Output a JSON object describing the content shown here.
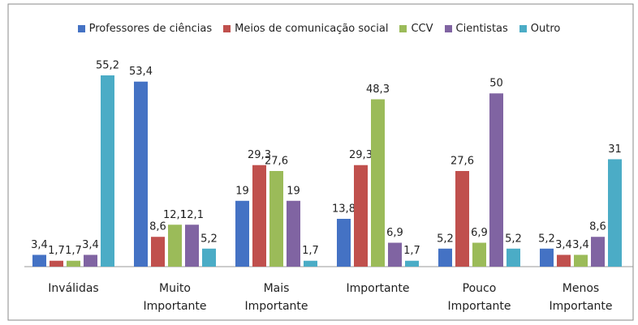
{
  "chart_data": {
    "type": "bar",
    "categories": [
      "Inválidas",
      "Muito\nImportante",
      "Mais Importante",
      "Importante",
      "Pouco\nImportante",
      "Menos\nImportante"
    ],
    "series": [
      {
        "name": "Professores de ciências",
        "color": "#4472c4",
        "values": [
          3.4,
          53.4,
          19,
          13.8,
          5.2,
          5.2
        ],
        "value_labels": [
          "3,4",
          "53,4",
          "19",
          "13,8",
          "5,2",
          "5,2"
        ]
      },
      {
        "name": "Meios de comunicação social",
        "color": "#c0504d",
        "values": [
          1.7,
          8.6,
          29.3,
          29.3,
          27.6,
          3.4
        ],
        "value_labels": [
          "1,7",
          "8,6",
          "29,3",
          "29,3",
          "27,6",
          "3,4"
        ]
      },
      {
        "name": "CCV",
        "color": "#9bbb59",
        "values": [
          1.7,
          12.1,
          27.6,
          48.3,
          6.9,
          3.4
        ],
        "value_labels": [
          "1,7",
          "12,1",
          "27,6",
          "48,3",
          "6,9",
          "3,4"
        ]
      },
      {
        "name": "Cientistas",
        "color": "#8064a2",
        "values": [
          3.4,
          12.1,
          19,
          6.9,
          50,
          8.6
        ],
        "value_labels": [
          "3,4",
          "12,1",
          "19",
          "6,9",
          "50",
          "8,6"
        ]
      },
      {
        "name": "Outro",
        "color": "#4bacc6",
        "values": [
          55.2,
          5.2,
          1.7,
          1.7,
          5.2,
          31
        ],
        "value_labels": [
          "55,2",
          "5,2",
          "1,7",
          "1,7",
          "5,2",
          "31"
        ]
      }
    ]
  }
}
